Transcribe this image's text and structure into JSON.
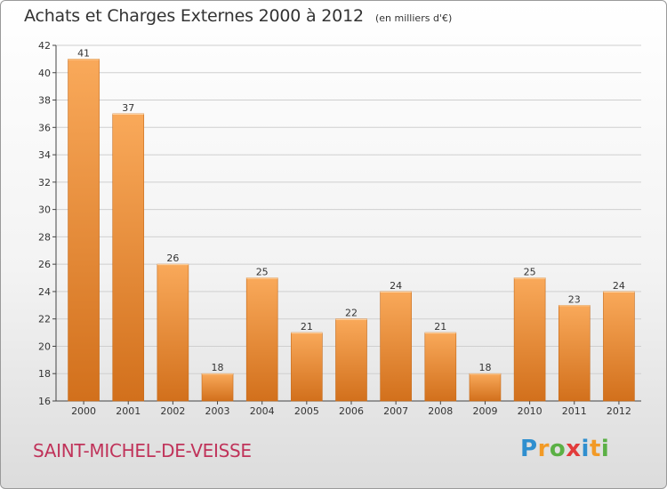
{
  "title": "Achats et Charges Externes 2000 à 2012",
  "unit": "(en milliers d'€)",
  "place": "SAINT-MICHEL-DE-VEISSE",
  "logo": {
    "letters": [
      "P",
      "r",
      "o",
      "x",
      "i",
      "t",
      "i"
    ],
    "colors": [
      "#2f8fcf",
      "#f29a26",
      "#5bb045",
      "#e23b3b",
      "#2f8fcf",
      "#f29a26",
      "#5bb045"
    ]
  },
  "colors": {
    "bar_top": "#f9a95a",
    "bar_bottom": "#d2701c",
    "grid": "#cfcfcf",
    "title": "#333333",
    "place": "#c0335a"
  },
  "chart_data": {
    "type": "bar",
    "title": "Achats et Charges Externes 2000 à 2012",
    "subtitle": "(en milliers d'€)",
    "categories": [
      "2000",
      "2001",
      "2002",
      "2003",
      "2004",
      "2005",
      "2006",
      "2007",
      "2008",
      "2009",
      "2010",
      "2011",
      "2012"
    ],
    "values": [
      41,
      37,
      26,
      18,
      25,
      21,
      22,
      24,
      21,
      18,
      25,
      23,
      24
    ],
    "ylim": [
      16,
      42
    ],
    "yticks": [
      16,
      18,
      20,
      22,
      24,
      26,
      28,
      30,
      32,
      34,
      36,
      38,
      40,
      42
    ],
    "xlabel": "",
    "ylabel": "",
    "grid": true,
    "legend": "none"
  }
}
